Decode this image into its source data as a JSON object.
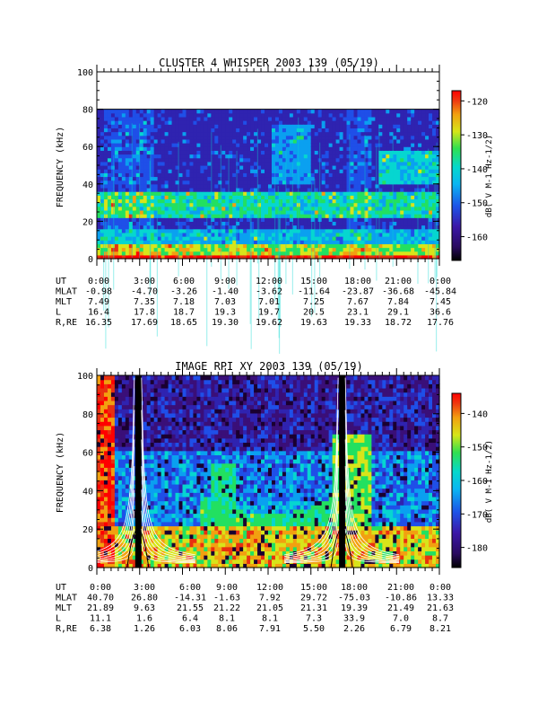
{
  "chart_data": [
    {
      "type": "heatmap",
      "title": "CLUSTER 4 WHISPER 2003 139 (05/19)",
      "ylabel": "FREQUENCY (kHz)",
      "ylim": [
        0,
        100
      ],
      "yticks": [
        "0",
        "20",
        "40",
        "60",
        "80",
        "100"
      ],
      "data_max_frequency_khz": 80,
      "colorbar": {
        "label": "dB( V M-1 Hz-1/2)",
        "range": [
          -167,
          -117
        ],
        "ticks": [
          "-120",
          "-130",
          "-140",
          "-150",
          "-160"
        ]
      },
      "ephemeris": {
        "rows": [
          {
            "name": "UT",
            "values": [
              "0:00",
              "3:00",
              "6:00",
              "9:00",
              "12:00",
              "15:00",
              "18:00",
              "21:00",
              "0:00"
            ]
          },
          {
            "name": "MLAT",
            "values": [
              "-0.98",
              "-4.70",
              "-3.26",
              "-1.40",
              "-3.62",
              "-11.64",
              "-23.87",
              "-36.68",
              "-45.84"
            ]
          },
          {
            "name": "MLT",
            "values": [
              "7.49",
              "7.35",
              "7.18",
              "7.03",
              "7.01",
              "7.25",
              "7.67",
              "7.84",
              "7.45"
            ]
          },
          {
            "name": "L",
            "values": [
              "16.4",
              "17.8",
              "18.7",
              "19.3",
              "19.7",
              "20.5",
              "23.1",
              "29.1",
              "36.6"
            ]
          },
          {
            "name": "R,RE",
            "values": [
              "16.35",
              "17.69",
              "18.65",
              "19.30",
              "19.62",
              "19.63",
              "19.33",
              "18.72",
              "17.76"
            ]
          }
        ]
      }
    },
    {
      "type": "heatmap",
      "title": "IMAGE RPI XY 2003 139 (05/19)",
      "ylabel": "FREQUENCY (kHz)",
      "ylim": [
        0,
        100
      ],
      "yticks": [
        "0",
        "20",
        "40",
        "60",
        "80",
        "100"
      ],
      "colorbar": {
        "label": "dB( V M-1 Hz-1/2)",
        "range": [
          -186,
          -134
        ],
        "ticks": [
          "-140",
          "-150",
          "-160",
          "-170",
          "-180"
        ]
      },
      "ephemeris": {
        "rows": [
          {
            "name": "UT",
            "values": [
              "0:00",
              "3:00",
              "6:00",
              "9:00",
              "12:00",
              "15:00",
              "18:00",
              "21:00",
              "0:00"
            ]
          },
          {
            "name": "MLAT",
            "values": [
              "40.70",
              "26.80",
              "-14.31",
              "-1.63",
              "7.92",
              "29.72",
              "-75.03",
              "-10.86",
              "13.33"
            ]
          },
          {
            "name": "MLT",
            "values": [
              "21.89",
              "9.63",
              "21.55",
              "21.22",
              "21.05",
              "21.31",
              "19.39",
              "21.49",
              "21.63"
            ]
          },
          {
            "name": "L",
            "values": [
              "11.1",
              "1.6",
              "6.4",
              "8.1",
              "8.1",
              "7.3",
              "33.9",
              "7.0",
              "8.7"
            ]
          },
          {
            "name": "R,RE",
            "values": [
              "6.38",
              "1.26",
              "6.03",
              "8.06",
              "7.91",
              "5.50",
              "2.26",
              "6.79",
              "8.21"
            ]
          }
        ]
      }
    }
  ],
  "palette": [
    "#1a0030",
    "#3a0f78",
    "#2f23b0",
    "#1f4fe8",
    "#0aa0f0",
    "#06d6d0",
    "#22e060",
    "#d8e41a",
    "#f2a010",
    "#e83010",
    "#ff0000"
  ]
}
